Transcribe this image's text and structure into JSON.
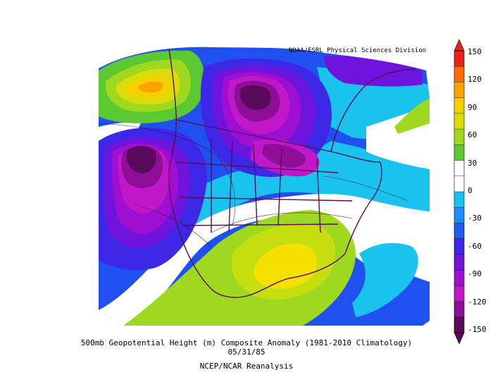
{
  "credit": "NOAA/ESRL Physical Sciences Division",
  "caption": {
    "line1": "500mb Geopotential Height (m) Composite Anomaly (1981-2010 Climatology)",
    "line2": "05/31/85",
    "line3": "NCEP/NCAR Reanalysis"
  },
  "colorbar": {
    "labels": [
      "150",
      "120",
      "90",
      "60",
      "30",
      "0",
      "-30",
      "-60",
      "-90",
      "-120",
      "-150"
    ],
    "colors": [
      "#e8231a",
      "#ff6a00",
      "#ffa200",
      "#f5d000",
      "#dcdc0a",
      "#9ed91f",
      "#5cc832",
      "#ffffff",
      "#ffffff",
      "#19c3ee",
      "#1e8cff",
      "#1e5cf0",
      "#3c28e6",
      "#6e14dc",
      "#9e0fd2",
      "#c018c8",
      "#8c0f96",
      "#5a0a5a"
    ]
  },
  "map": {
    "ocean_background": "#2050f0",
    "land_outline_color": "#5a0a5a"
  }
}
